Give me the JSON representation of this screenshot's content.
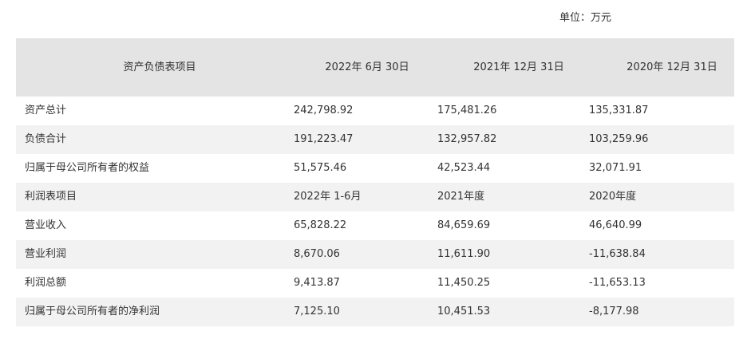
{
  "unit_label": "单位：万元",
  "table": {
    "headers": [
      "资产负债表项目",
      "2022年 6月 30日",
      "2021年 12月 31日",
      "2020年 12月 31日"
    ],
    "rows": [
      [
        "资产总计",
        "242,798.92",
        "175,481.26",
        "135,331.87"
      ],
      [
        "负债合计",
        "191,223.47",
        "132,957.82",
        "103,259.96"
      ],
      [
        "归属于母公司所有者的权益",
        "51,575.46",
        "42,523.44",
        "32,071.91"
      ],
      [
        "利润表项目",
        "2022年 1-6月",
        "2021年度",
        "2020年度"
      ],
      [
        "营业收入",
        "65,828.22",
        "84,659.69",
        "46,640.99"
      ],
      [
        "营业利润",
        "8,670.06",
        "11,611.90",
        "-11,638.84"
      ],
      [
        "利润总额",
        "9,413.87",
        "11,450.25",
        "-11,653.13"
      ],
      [
        "归属于母公司所有者的净利润",
        "7,125.10",
        "10,451.53",
        "-8,177.98"
      ]
    ]
  }
}
